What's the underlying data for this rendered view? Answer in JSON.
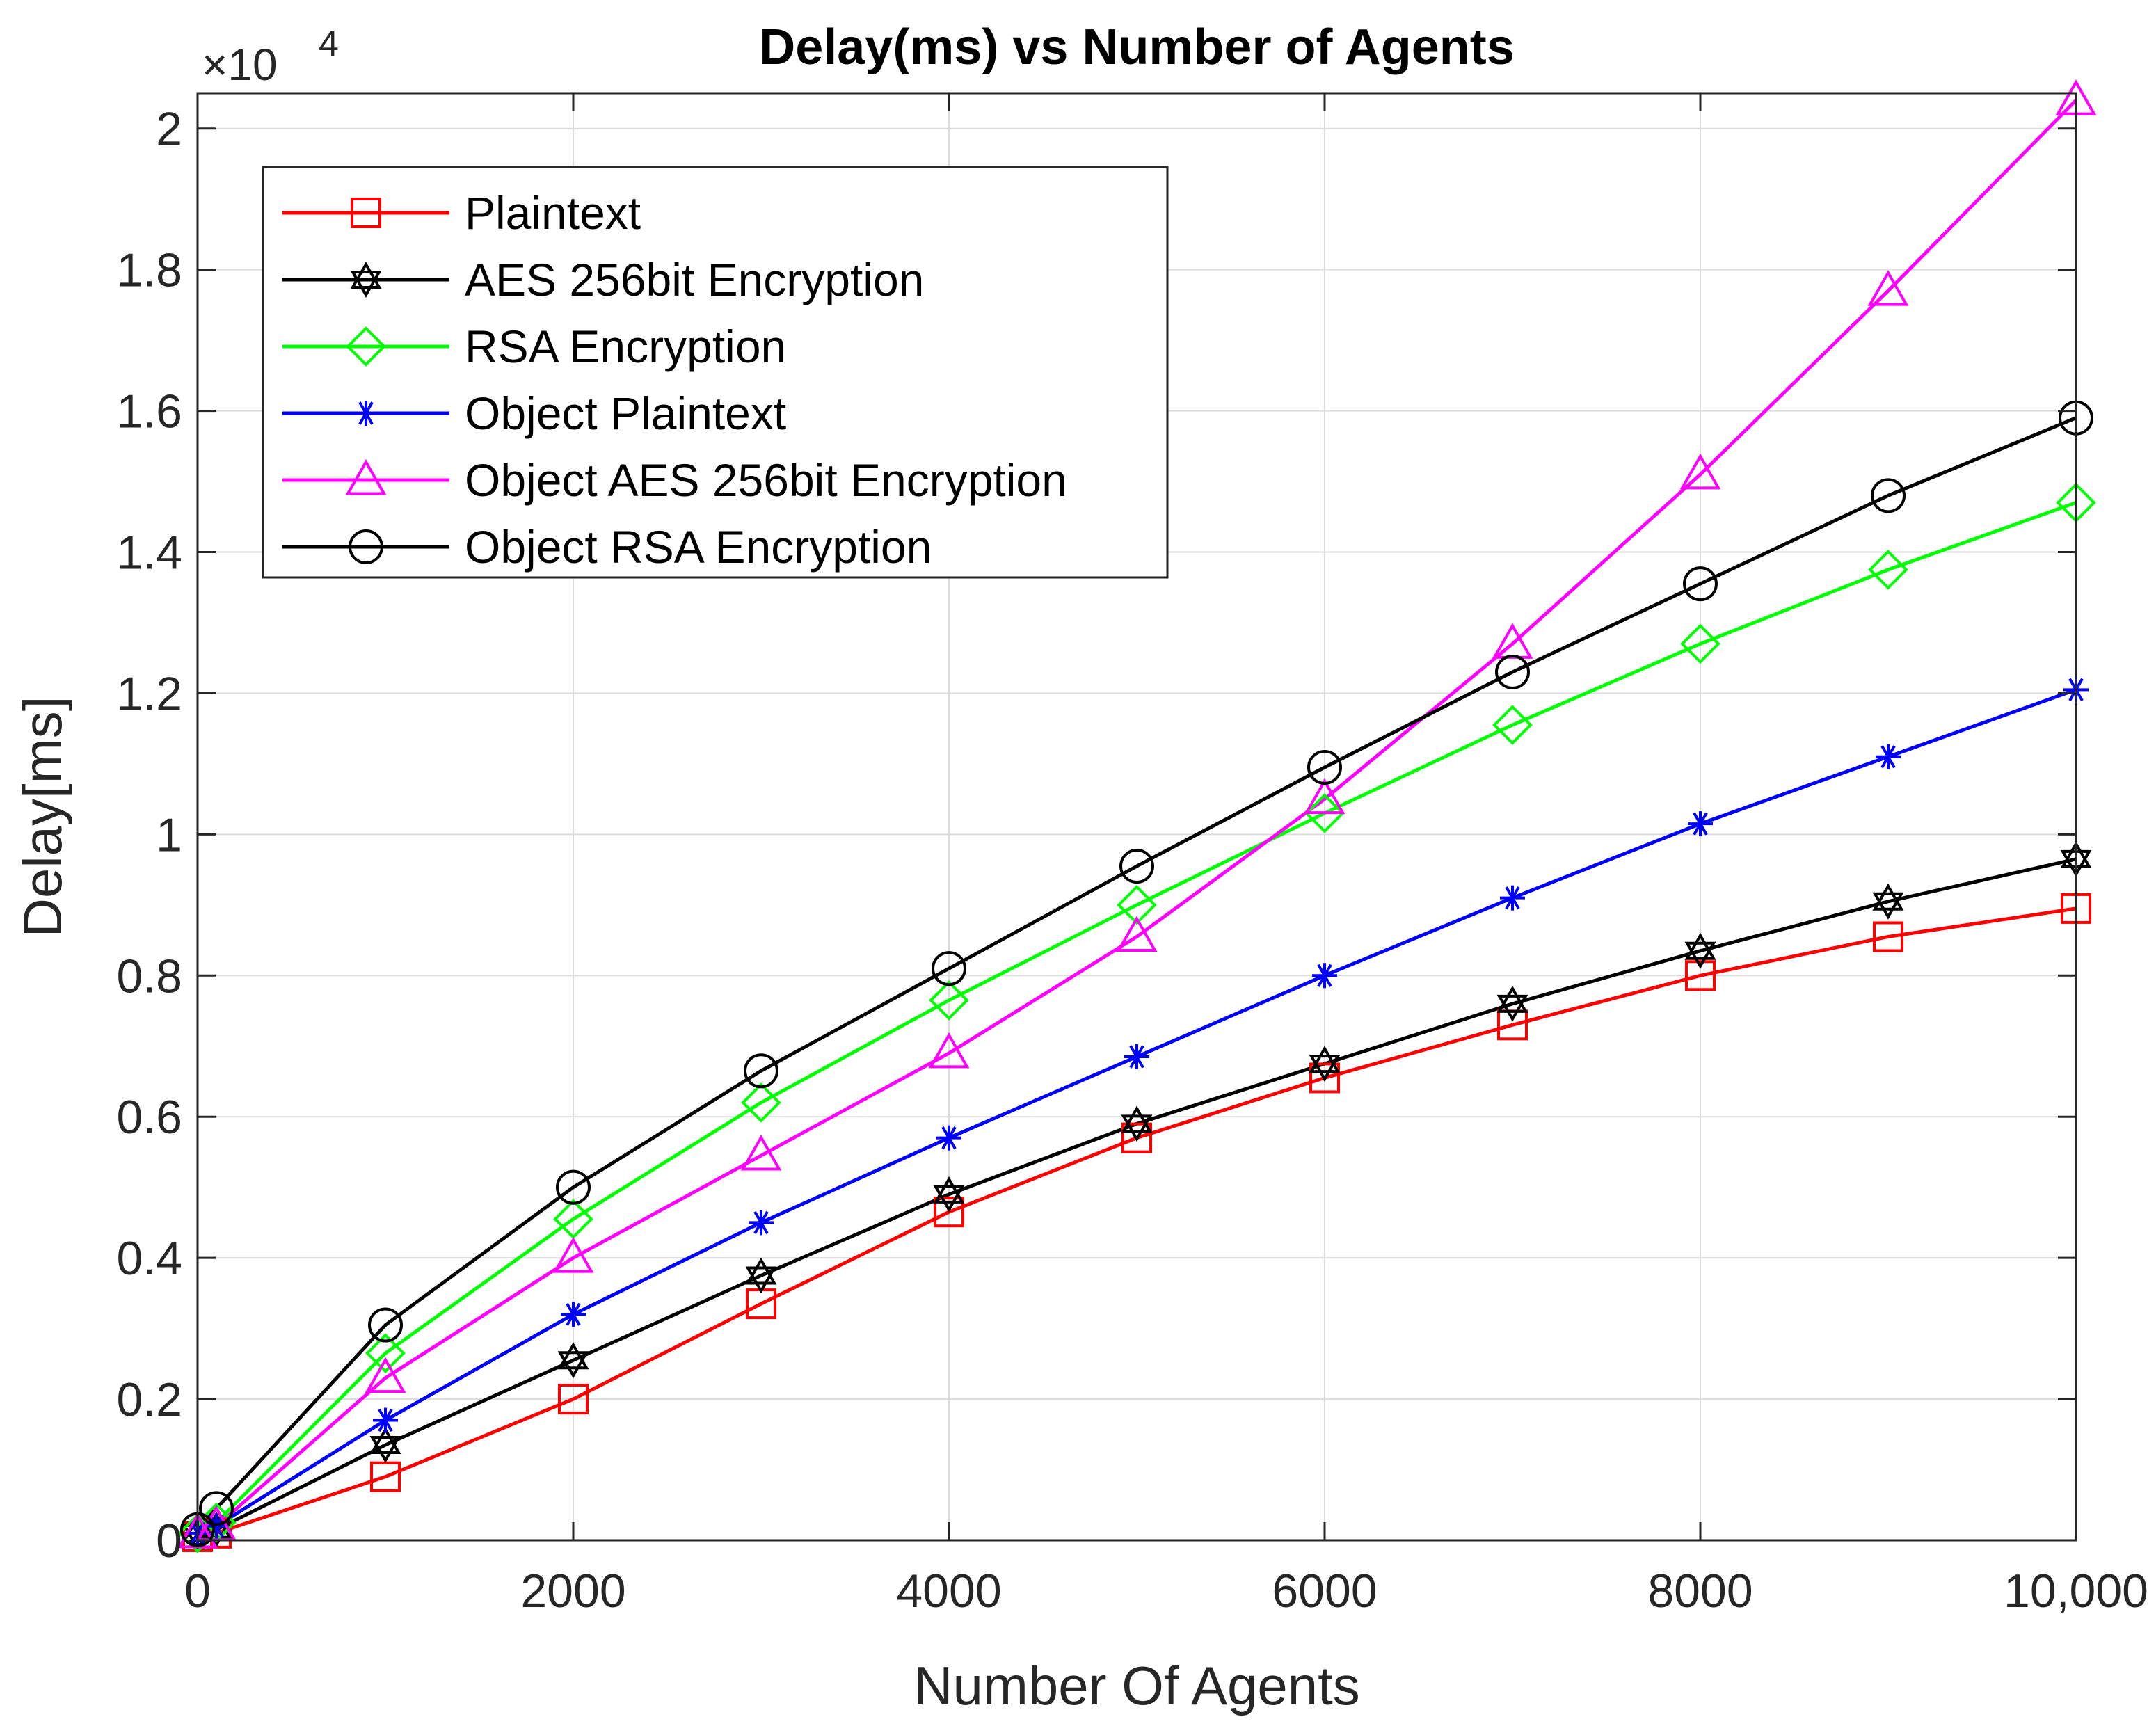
{
  "chart_data": {
    "type": "line",
    "title": "Delay(ms) vs Number of Agents",
    "xlabel": "Number Of Agents",
    "ylabel": "Delay[ms]",
    "y_exponent": "×10",
    "y_exponent_power": "4",
    "xlim": [
      0,
      10000
    ],
    "ylim": [
      0,
      20500
    ],
    "grid": true,
    "legend_position": "top-left",
    "x_ticks": [
      0,
      2000,
      4000,
      6000,
      8000,
      10000
    ],
    "x_tick_labels": [
      "0",
      "2000",
      "4000",
      "6000",
      "8000",
      "10,000"
    ],
    "y_ticks": [
      0,
      2000,
      4000,
      6000,
      8000,
      10000,
      12000,
      14000,
      16000,
      18000,
      20000
    ],
    "y_tick_labels": [
      "0",
      "0.2",
      "0.4",
      "0.6",
      "0.8",
      "1",
      "1.2",
      "1.4",
      "1.6",
      "1.8",
      "2"
    ],
    "x": [
      0,
      100,
      1000,
      2000,
      3000,
      4000,
      5000,
      6000,
      7000,
      8000,
      9000,
      10000
    ],
    "series": [
      {
        "name": "Plaintext",
        "color": "#ff0000",
        "marker": "square",
        "values": [
          50,
          100,
          900,
          2000,
          3350,
          4650,
          5700,
          6550,
          7300,
          8000,
          8550,
          8950
        ]
      },
      {
        "name": "AES 256bit Encryption",
        "color": "#000000",
        "marker": "hexagram",
        "values": [
          100,
          150,
          1350,
          2550,
          3750,
          4900,
          5900,
          6750,
          7600,
          8350,
          9050,
          9650
        ]
      },
      {
        "name": "RSA Encryption",
        "color": "#00ff00",
        "marker": "diamond",
        "values": [
          100,
          250,
          2650,
          4550,
          6200,
          7650,
          9000,
          10300,
          11550,
          12700,
          13750,
          14700
        ]
      },
      {
        "name": "Object Plaintext",
        "color": "#0000ff",
        "marker": "asterisk",
        "values": [
          100,
          200,
          1700,
          3200,
          4500,
          5700,
          6850,
          8000,
          9100,
          10150,
          11100,
          12050
        ]
      },
      {
        "name": "Object AES 256bit Encryption",
        "color": "#ff00ff",
        "marker": "triangle",
        "values": [
          100,
          200,
          2300,
          4000,
          5450,
          6900,
          8550,
          10500,
          12700,
          15100,
          17700,
          20400
        ]
      },
      {
        "name": "Object RSA Encryption",
        "color": "#000000",
        "marker": "circle",
        "values": [
          150,
          450,
          3050,
          5000,
          6650,
          8100,
          9550,
          10950,
          12300,
          13550,
          14800,
          15900
        ]
      }
    ]
  }
}
